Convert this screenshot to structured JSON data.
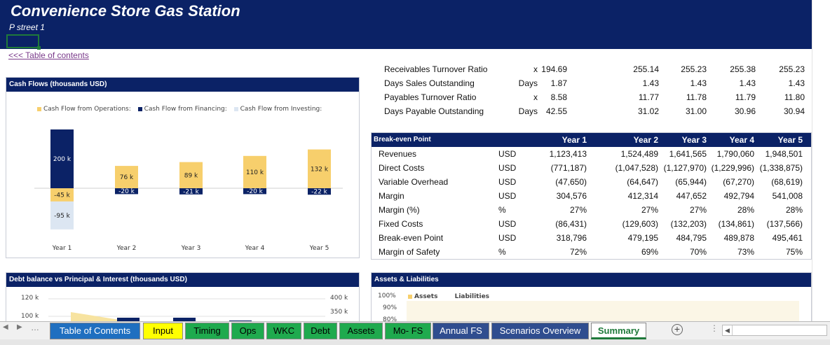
{
  "header": {
    "title": "Convenience Store Gas Station",
    "subtitle": "P street 1",
    "toc_link": "<<< Table of contents"
  },
  "cash_flows": {
    "title": "Cash Flows  (thousands USD)",
    "legend": [
      {
        "label": "Cash Flow from Operations:",
        "color": "#f7cf6c"
      },
      {
        "label": "Cash Flow from Financing:",
        "color": "#0b2266"
      },
      {
        "label": "Cash Flow from Investing:",
        "color": "#dce6f2"
      }
    ]
  },
  "chart_data": {
    "type": "bar",
    "categories": [
      "Year 1",
      "Year 2",
      "Year 3",
      "Year 4",
      "Year 5"
    ],
    "series": [
      {
        "name": "Cash Flow from Operations:",
        "values": [
          -45,
          76,
          89,
          110,
          132
        ]
      },
      {
        "name": "Cash Flow from Financing:",
        "values": [
          200,
          -20,
          -21,
          -20,
          -22
        ]
      },
      {
        "name": "Cash Flow from Investing:",
        "values": [
          -95,
          0,
          0,
          0,
          0
        ]
      }
    ],
    "labels": [
      {
        "operations": "-45 k",
        "financing": "200 k",
        "investing": "-95 k"
      },
      {
        "operations": "76 k",
        "financing": "-20 k",
        "investing": ""
      },
      {
        "operations": "89 k",
        "financing": "-21 k",
        "investing": ""
      },
      {
        "operations": "110 k",
        "financing": "-20 k",
        "investing": ""
      },
      {
        "operations": "132 k",
        "financing": "-22 k",
        "investing": ""
      }
    ],
    "legend_position": "top"
  },
  "ratios": {
    "rows": [
      {
        "label": "Receivables Turnover Ratio",
        "unit": "x",
        "values": [
          "194.69",
          "255.14",
          "255.23",
          "255.38",
          "255.23"
        ]
      },
      {
        "label": "Days Sales Outstanding",
        "unit": "Days",
        "values": [
          "1.87",
          "1.43",
          "1.43",
          "1.43",
          "1.43"
        ]
      },
      {
        "label": "Payables Turnover Ratio",
        "unit": "x",
        "values": [
          "8.58",
          "11.77",
          "11.78",
          "11.79",
          "11.80"
        ]
      },
      {
        "label": "Days Payable Outstanding",
        "unit": "Days",
        "values": [
          "42.55",
          "31.02",
          "31.00",
          "30.96",
          "30.94"
        ]
      }
    ]
  },
  "breakeven": {
    "title": "Break-even Point",
    "headers": [
      "Year  1",
      "Year  2",
      "Year  3",
      "Year  4",
      "Year  5"
    ],
    "rows": [
      {
        "label": "Revenues",
        "unit": "USD",
        "values": [
          "1,123,413",
          "1,524,489",
          "1,641,565",
          "1,790,060",
          "1,948,501"
        ]
      },
      {
        "label": "Direct Costs",
        "unit": "USD",
        "values": [
          "(771,187)",
          "(1,047,528)",
          "(1,127,970)",
          "(1,229,996)",
          "(1,338,875)"
        ]
      },
      {
        "label": "Variable Overhead",
        "unit": "USD",
        "values": [
          "(47,650)",
          "(64,647)",
          "(65,944)",
          "(67,270)",
          "(68,619)"
        ]
      },
      {
        "label": "Margin",
        "unit": "USD",
        "values": [
          "304,576",
          "412,314",
          "447,652",
          "492,794",
          "541,008"
        ]
      },
      {
        "label": "Margin (%)",
        "unit": "%",
        "values": [
          "27%",
          "27%",
          "27%",
          "28%",
          "28%"
        ]
      },
      {
        "label": "Fixed Costs",
        "unit": "USD",
        "values": [
          "(86,431)",
          "(129,603)",
          "(132,203)",
          "(134,861)",
          "(137,566)"
        ]
      },
      {
        "label": "Break-even Point",
        "unit": "USD",
        "values": [
          "318,796",
          "479,195",
          "484,795",
          "489,878",
          "495,461"
        ]
      },
      {
        "label": "Margin of Safety",
        "unit": "%",
        "values": [
          "72%",
          "69%",
          "70%",
          "73%",
          "75%"
        ]
      }
    ]
  },
  "debt_chart": {
    "title": "Debt balance vs Principal & Interest  (thousands USD)",
    "left_ticks": [
      "120 k",
      "100 k"
    ],
    "right_ticks": [
      "400 k",
      "350 k"
    ]
  },
  "assets_chart": {
    "title": "Assets & Liabilities",
    "ticks": [
      "100%",
      "90%",
      "80%"
    ],
    "legend": [
      {
        "label": "Assets",
        "color": "#f7cf6c"
      },
      {
        "label": "Liabilities",
        "color": "#ffffff"
      }
    ]
  },
  "tabs": [
    {
      "label": "Table of Contents",
      "color": "#1f6fc0",
      "text": "#ffffff"
    },
    {
      "label": "Input",
      "color": "#ffff00",
      "text": "#000000"
    },
    {
      "label": "Timing",
      "color": "#1faa4e",
      "text": "#000000"
    },
    {
      "label": "Ops",
      "color": "#1faa4e",
      "text": "#000000"
    },
    {
      "label": "WKC",
      "color": "#1faa4e",
      "text": "#000000"
    },
    {
      "label": "Debt",
      "color": "#1faa4e",
      "text": "#000000"
    },
    {
      "label": "Assets",
      "color": "#1faa4e",
      "text": "#000000"
    },
    {
      "label": "Mo- FS",
      "color": "#1faa4e",
      "text": "#000000"
    },
    {
      "label": "Annual FS",
      "color": "#2f4d8f",
      "text": "#ffffff"
    },
    {
      "label": "Scenarios Overview",
      "color": "#2f4d8f",
      "text": "#ffffff"
    },
    {
      "label": "Summary",
      "color": "#ffffff",
      "text": "#1f7a3a"
    }
  ],
  "add_sheet_icon": "plus-circle-icon"
}
